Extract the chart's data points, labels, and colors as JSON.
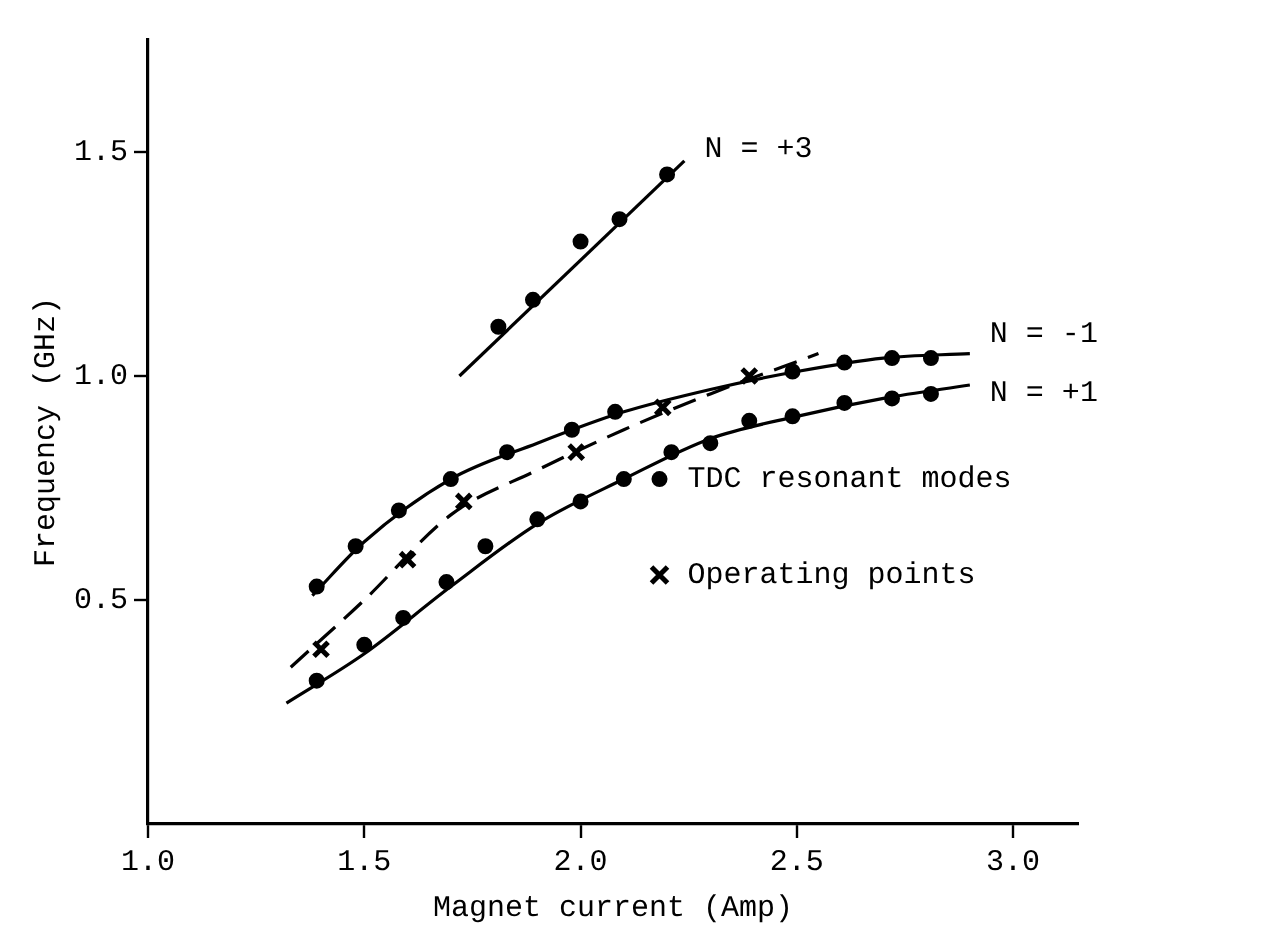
{
  "chart_data": {
    "type": "scatter",
    "xlabel": "Magnet current (Amp)",
    "ylabel": "Frequency (GHz)",
    "xlim": [
      1.0,
      3.15
    ],
    "ylim": [
      0,
      1.75
    ],
    "xticks": [
      {
        "value": 1,
        "label": "1.0"
      },
      {
        "value": 1.5,
        "label": "1.5"
      },
      {
        "value": 2,
        "label": "2.0"
      },
      {
        "value": 2.5,
        "label": "2.5"
      },
      {
        "value": 3,
        "label": "3.0"
      }
    ],
    "yticks": [
      {
        "value": 0.5,
        "label": "0.5"
      },
      {
        "value": 1,
        "label": "1.0"
      },
      {
        "value": 1.5,
        "label": "1.5"
      }
    ],
    "legend": "right",
    "series": [
      {
        "type": "line",
        "color": "#000000",
        "marker": "none",
        "line_style": "solid",
        "x": [
          1.38,
          1.5,
          1.7,
          1.9,
          2.1,
          2.3,
          2.5,
          2.7,
          2.9
        ],
        "values": [
          0.51,
          0.63,
          0.77,
          0.85,
          0.92,
          0.97,
          1.01,
          1.04,
          1.05
        ]
      },
      {
        "type": "line",
        "color": "#000000",
        "marker": "none",
        "line_style": "solid",
        "x": [
          1.32,
          1.5,
          1.7,
          1.9,
          2.1,
          2.3,
          2.5,
          2.7,
          2.9
        ],
        "values": [
          0.27,
          0.38,
          0.53,
          0.67,
          0.77,
          0.86,
          0.91,
          0.95,
          0.98
        ]
      },
      {
        "type": "line",
        "color": "#000000",
        "marker": "none",
        "line_style": "solid",
        "x": [
          1.72,
          2.24
        ],
        "values": [
          1.0,
          1.48
        ]
      },
      {
        "type": "line",
        "color": "#000000",
        "marker": "none",
        "line_style": "dashed",
        "x": [
          1.33,
          1.5,
          1.7,
          1.9,
          2.1,
          2.3,
          2.55
        ],
        "values": [
          0.35,
          0.5,
          0.69,
          0.79,
          0.88,
          0.96,
          1.05
        ]
      },
      {
        "type": "scatter",
        "name": "TDC resonant modes",
        "color": "#000000",
        "marker": "circle",
        "x": [
          1.39,
          1.48,
          1.58,
          1.7,
          1.83,
          1.98,
          2.08,
          2.49,
          2.61,
          2.72,
          2.81,
          1.39,
          1.5,
          1.59,
          1.69,
          1.78,
          1.9,
          2.0,
          2.1,
          2.21,
          2.3,
          2.39,
          2.49,
          2.61,
          2.72,
          2.81,
          1.81,
          1.89,
          2.0,
          2.09,
          2.2
        ],
        "values": [
          0.53,
          0.62,
          0.7,
          0.77,
          0.83,
          0.88,
          0.92,
          1.01,
          1.03,
          1.04,
          1.04,
          0.32,
          0.4,
          0.46,
          0.54,
          0.62,
          0.68,
          0.72,
          0.77,
          0.83,
          0.85,
          0.9,
          0.91,
          0.94,
          0.95,
          0.96,
          1.11,
          1.17,
          1.3,
          1.35,
          1.45
        ]
      },
      {
        "type": "scatter",
        "name": "Operating points",
        "color": "#000000",
        "marker": "cross",
        "x": [
          1.4,
          1.6,
          1.73,
          1.99,
          2.19,
          2.39
        ],
        "values": [
          0.39,
          0.59,
          0.72,
          0.83,
          0.93,
          1.0
        ]
      }
    ],
    "annotations": [
      "N = -1",
      "N = +1",
      "N = +3"
    ]
  }
}
